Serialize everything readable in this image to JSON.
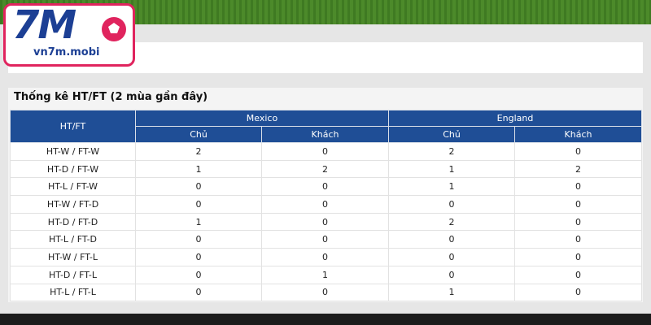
{
  "logo": {
    "mark": "7M",
    "site": "vn7m.mobi"
  },
  "table": {
    "title": "Thống kê HT/FT (2 mùa gần đây)",
    "corner": "HT/FT",
    "teams": [
      "Mexico",
      "England"
    ],
    "subheaders": [
      "Chủ",
      "Khách",
      "Chủ",
      "Khách"
    ],
    "rows": [
      {
        "label": "HT-W / FT-W",
        "values": [
          2,
          0,
          2,
          0
        ]
      },
      {
        "label": "HT-D / FT-W",
        "values": [
          1,
          2,
          1,
          2
        ]
      },
      {
        "label": "HT-L / FT-W",
        "values": [
          0,
          0,
          1,
          0
        ]
      },
      {
        "label": "HT-W / FT-D",
        "values": [
          0,
          0,
          0,
          0
        ]
      },
      {
        "label": "HT-D / FT-D",
        "values": [
          1,
          0,
          2,
          0
        ]
      },
      {
        "label": "HT-L / FT-D",
        "values": [
          0,
          0,
          0,
          0
        ]
      },
      {
        "label": "HT-W / FT-L",
        "values": [
          0,
          0,
          0,
          0
        ]
      },
      {
        "label": "HT-D / FT-L",
        "values": [
          0,
          1,
          0,
          0
        ]
      },
      {
        "label": "HT-L / FT-L",
        "values": [
          0,
          0,
          1,
          0
        ]
      }
    ]
  }
}
